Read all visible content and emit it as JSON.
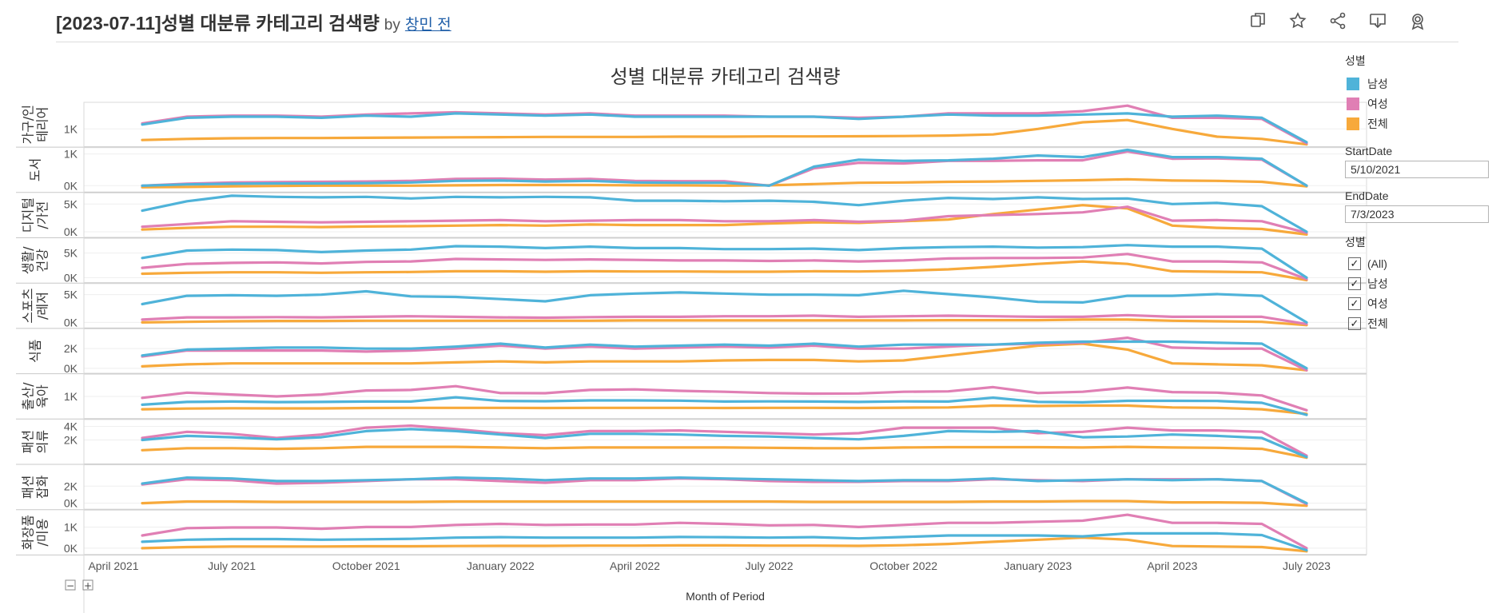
{
  "header": {
    "title": "[2023-07-11]성별 대분류 카테고리 검색량",
    "by": "by",
    "author": "창민 전",
    "toolbar": [
      {
        "name": "duplicate-icon",
        "label": "Duplicate"
      },
      {
        "name": "favorite-icon",
        "label": "Favorite"
      },
      {
        "name": "share-icon",
        "label": "Share"
      },
      {
        "name": "download-icon",
        "label": "Download"
      },
      {
        "name": "badge-icon",
        "label": "Badge"
      }
    ]
  },
  "legend": {
    "title": "성별",
    "items": [
      {
        "label": "남성",
        "color": "#4fb3d9"
      },
      {
        "label": "여성",
        "color": "#e07fb4"
      },
      {
        "label": "전체",
        "color": "#f7a93b"
      }
    ]
  },
  "parameters": {
    "start_label": "StartDate",
    "start_value": "5/10/2021",
    "end_label": "EndDate",
    "end_value": "7/3/2023"
  },
  "filter": {
    "title": "성별",
    "items": [
      {
        "label": "(All)",
        "checked": true
      },
      {
        "label": "남성",
        "checked": true
      },
      {
        "label": "여성",
        "checked": true
      },
      {
        "label": "전체",
        "checked": true
      }
    ]
  },
  "chart_data": {
    "type": "line",
    "title": "성별 대분류 카테고리 검색량",
    "xlabel": "Month of Period",
    "x_ticks": [
      "April 2021",
      "July 2021",
      "October 2021",
      "January 2022",
      "April 2022",
      "July 2022",
      "October 2022",
      "January 2023",
      "April 2023",
      "July 2023"
    ],
    "expand_controls": [
      "−",
      "+"
    ],
    "x": [
      "2021-05",
      "2021-06",
      "2021-07",
      "2021-08",
      "2021-09",
      "2021-10",
      "2021-11",
      "2021-12",
      "2022-01",
      "2022-02",
      "2022-03",
      "2022-04",
      "2022-05",
      "2022-06",
      "2022-07",
      "2022-08",
      "2022-09",
      "2022-10",
      "2022-11",
      "2022-12",
      "2023-01",
      "2023-02",
      "2023-03",
      "2023-04",
      "2023-05",
      "2023-06",
      "2023-07"
    ],
    "series_names": [
      "남성",
      "여성",
      "전체"
    ],
    "colors": [
      "#4fb3d9",
      "#e07fb4",
      "#f7a93b"
    ],
    "panels": [
      {
        "label": "가구/인테리어",
        "ticks": [
          {
            "v": 1000,
            "t": "1K"
          }
        ],
        "ylim": [
          200,
          2200
        ],
        "남성": [
          1200,
          1500,
          1550,
          1550,
          1500,
          1600,
          1550,
          1700,
          1650,
          1600,
          1650,
          1550,
          1550,
          1550,
          1550,
          1550,
          1450,
          1550,
          1650,
          1600,
          1600,
          1650,
          1700,
          1550,
          1600,
          1500,
          400
        ],
        "여성": [
          1250,
          1550,
          1600,
          1600,
          1550,
          1650,
          1700,
          1750,
          1700,
          1650,
          1700,
          1600,
          1600,
          1600,
          1550,
          1550,
          1500,
          1550,
          1700,
          1700,
          1700,
          1800,
          2050,
          1500,
          1500,
          1450,
          350
        ],
        "전체": [
          500,
          550,
          580,
          590,
          590,
          600,
          610,
          620,
          630,
          640,
          640,
          640,
          650,
          650,
          660,
          660,
          670,
          680,
          700,
          750,
          1000,
          1300,
          1400,
          1000,
          650,
          550,
          300
        ]
      },
      {
        "label": "도서",
        "ticks": [
          {
            "v": 1000,
            "t": "1K"
          },
          {
            "v": 0,
            "t": "0K"
          }
        ],
        "ylim": [
          -200,
          1200
        ],
        "남성": [
          0,
          40,
          60,
          70,
          70,
          80,
          100,
          150,
          160,
          130,
          150,
          100,
          90,
          90,
          0,
          600,
          820,
          780,
          800,
          850,
          950,
          900,
          1130,
          900,
          900,
          850,
          0
        ],
        "여성": [
          0,
          60,
          100,
          110,
          120,
          130,
          150,
          210,
          220,
          190,
          210,
          150,
          140,
          140,
          0,
          550,
          720,
          700,
          780,
          780,
          800,
          800,
          1080,
          850,
          860,
          820,
          0
        ],
        "전체": [
          -50,
          -40,
          -20,
          -10,
          0,
          0,
          0,
          10,
          20,
          20,
          20,
          10,
          10,
          0,
          10,
          50,
          90,
          100,
          120,
          130,
          150,
          170,
          200,
          160,
          150,
          120,
          -20
        ]
      },
      {
        "label": "디지털/가전",
        "ticks": [
          {
            "v": 5000,
            "t": "5K"
          },
          {
            "v": 0,
            "t": "0K"
          }
        ],
        "ylim": [
          -1000,
          7000
        ],
        "남성": [
          3800,
          5500,
          6500,
          6300,
          6200,
          6300,
          6000,
          6300,
          6200,
          6300,
          6200,
          5600,
          5600,
          5500,
          5600,
          5400,
          4800,
          5600,
          6100,
          5900,
          6200,
          5900,
          6000,
          5000,
          5200,
          4600,
          0
        ],
        "여성": [
          900,
          1400,
          1900,
          1800,
          1700,
          1800,
          1900,
          2000,
          2100,
          1900,
          2000,
          2100,
          2100,
          1900,
          1900,
          2100,
          1800,
          2000,
          2800,
          3000,
          3200,
          3500,
          4500,
          2000,
          2100,
          1900,
          -200
        ],
        "전체": [
          400,
          700,
          900,
          900,
          850,
          950,
          1000,
          1100,
          1200,
          1100,
          1300,
          1200,
          1200,
          1200,
          1500,
          1700,
          1600,
          1900,
          2200,
          3200,
          4000,
          4800,
          4200,
          1100,
          700,
          500,
          -500
        ]
      },
      {
        "label": "생활/건강",
        "ticks": [
          {
            "v": 5000,
            "t": "5K"
          },
          {
            "v": 0,
            "t": "0K"
          }
        ],
        "ylim": [
          -1000,
          8000
        ],
        "남성": [
          4000,
          5500,
          5700,
          5600,
          5200,
          5500,
          5700,
          6400,
          6300,
          6000,
          6300,
          6000,
          6000,
          5800,
          5800,
          5900,
          5600,
          6000,
          6200,
          6300,
          6100,
          6200,
          6600,
          6300,
          6300,
          5900,
          0
        ],
        "여성": [
          2000,
          2800,
          3000,
          3100,
          2900,
          3200,
          3300,
          3800,
          3700,
          3600,
          3700,
          3600,
          3500,
          3500,
          3400,
          3500,
          3300,
          3500,
          3900,
          4000,
          4000,
          4100,
          4800,
          3300,
          3300,
          3100,
          -300
        ],
        "전체": [
          800,
          1000,
          1100,
          1100,
          1000,
          1100,
          1150,
          1300,
          1300,
          1200,
          1300,
          1250,
          1250,
          1200,
          1200,
          1300,
          1250,
          1400,
          1700,
          2200,
          2800,
          3300,
          2800,
          1300,
          1200,
          1100,
          -500
        ]
      },
      {
        "label": "스포츠/레저",
        "ticks": [
          {
            "v": 5000,
            "t": "5K"
          },
          {
            "v": 0,
            "t": "0K"
          }
        ],
        "ylim": [
          -1000,
          7000
        ],
        "남성": [
          3300,
          4800,
          4900,
          4800,
          5000,
          5600,
          4700,
          4600,
          4200,
          3800,
          4900,
          5200,
          5400,
          5200,
          5000,
          5000,
          4900,
          5700,
          5100,
          4500,
          3700,
          3600,
          4800,
          4800,
          5100,
          4800,
          0
        ],
        "여성": [
          500,
          900,
          900,
          950,
          900,
          1000,
          1100,
          1000,
          900,
          850,
          950,
          1000,
          1000,
          1100,
          1100,
          1200,
          1000,
          1100,
          1200,
          1100,
          1000,
          1000,
          1300,
          1000,
          1000,
          1000,
          -300
        ],
        "전체": [
          0,
          100,
          200,
          250,
          250,
          300,
          300,
          300,
          300,
          300,
          300,
          350,
          350,
          350,
          350,
          350,
          350,
          350,
          400,
          400,
          400,
          500,
          500,
          300,
          200,
          100,
          -500
        ]
      },
      {
        "label": "식품",
        "ticks": [
          {
            "v": 2000,
            "t": "2K"
          },
          {
            "v": 0,
            "t": "0K"
          }
        ],
        "ylim": [
          -500,
          4000
        ],
        "남성": [
          1300,
          1900,
          2000,
          2100,
          2100,
          2000,
          2000,
          2200,
          2500,
          2100,
          2400,
          2200,
          2300,
          2400,
          2300,
          2500,
          2200,
          2400,
          2400,
          2400,
          2600,
          2700,
          2700,
          2700,
          2600,
          2500,
          0
        ],
        "여성": [
          1200,
          1800,
          1800,
          1800,
          1800,
          1700,
          1800,
          2000,
          2300,
          2000,
          2200,
          2000,
          2100,
          2200,
          2100,
          2300,
          2000,
          2000,
          2200,
          2400,
          2500,
          2600,
          3100,
          2100,
          2000,
          2000,
          -200
        ],
        "전체": [
          200,
          400,
          500,
          500,
          500,
          500,
          500,
          600,
          700,
          600,
          700,
          700,
          700,
          800,
          850,
          850,
          700,
          800,
          1300,
          1800,
          2300,
          2500,
          1900,
          500,
          400,
          300,
          -200
        ]
      },
      {
        "label": "출산/육아",
        "ticks": [
          {
            "v": 1000,
            "t": "1K"
          }
        ],
        "ylim": [
          -200,
          2200
        ],
        "남성": [
          550,
          700,
          720,
          690,
          700,
          720,
          720,
          950,
          750,
          740,
          780,
          780,
          770,
          720,
          730,
          720,
          700,
          730,
          720,
          930,
          700,
          680,
          760,
          760,
          750,
          650,
          0
        ],
        "여성": [
          920,
          1200,
          1100,
          1000,
          1100,
          1320,
          1350,
          1550,
          1180,
          1170,
          1350,
          1380,
          1300,
          1250,
          1180,
          1150,
          1160,
          1250,
          1270,
          1500,
          1180,
          1250,
          1480,
          1230,
          1200,
          1050,
          250
        ],
        "전체": [
          300,
          340,
          360,
          350,
          350,
          370,
          380,
          380,
          380,
          370,
          380,
          380,
          380,
          370,
          380,
          380,
          370,
          390,
          400,
          500,
          480,
          500,
          500,
          400,
          380,
          300,
          50
        ]
      },
      {
        "label": "패션의류",
        "ticks": [
          {
            "v": 4000,
            "t": "4K"
          },
          {
            "v": 2000,
            "t": "2K"
          }
        ],
        "ylim": [
          -1500,
          5000
        ],
        "남성": [
          2000,
          2600,
          2400,
          2100,
          2400,
          3300,
          3600,
          3300,
          2800,
          2300,
          2900,
          2900,
          2800,
          2600,
          2500,
          2300,
          2100,
          2600,
          3300,
          3200,
          3300,
          2400,
          2500,
          2800,
          2600,
          2300,
          -500
        ],
        "여성": [
          2300,
          3200,
          2900,
          2300,
          2800,
          3800,
          4100,
          3600,
          3000,
          2700,
          3300,
          3300,
          3400,
          3200,
          3000,
          2800,
          3000,
          3800,
          3800,
          3800,
          3000,
          3200,
          3800,
          3400,
          3400,
          3200,
          -300
        ],
        "전체": [
          500,
          800,
          800,
          700,
          800,
          1000,
          1000,
          1000,
          900,
          800,
          900,
          900,
          900,
          900,
          850,
          800,
          800,
          900,
          950,
          950,
          950,
          900,
          1000,
          900,
          850,
          700,
          -600
        ]
      },
      {
        "label": "패션잡화",
        "ticks": [
          {
            "v": 2000,
            "t": "2K"
          },
          {
            "v": 0,
            "t": "0K"
          }
        ],
        "ylim": [
          -700,
          4500
        ],
        "남성": [
          2300,
          3000,
          2900,
          2600,
          2600,
          2700,
          2800,
          3000,
          2900,
          2700,
          2900,
          2900,
          3000,
          2900,
          2800,
          2700,
          2600,
          2700,
          2700,
          2900,
          2600,
          2700,
          2800,
          2700,
          2800,
          2600,
          0
        ],
        "여성": [
          2200,
          2800,
          2700,
          2300,
          2400,
          2600,
          2800,
          2800,
          2600,
          2400,
          2700,
          2700,
          2900,
          2800,
          2600,
          2500,
          2500,
          2600,
          2600,
          2800,
          2700,
          2600,
          2800,
          2800,
          2800,
          2600,
          -100
        ],
        "전체": [
          0,
          200,
          200,
          150,
          150,
          150,
          150,
          200,
          200,
          200,
          200,
          200,
          200,
          200,
          200,
          150,
          150,
          150,
          150,
          200,
          200,
          250,
          250,
          100,
          100,
          50,
          -300
        ]
      },
      {
        "label": "화장품/미용",
        "ticks": [
          {
            "v": 1000,
            "t": "1K"
          },
          {
            "v": 0,
            "t": "0K"
          }
        ],
        "ylim": [
          -300,
          1800
        ],
        "남성": [
          300,
          400,
          430,
          430,
          400,
          420,
          440,
          500,
          520,
          500,
          500,
          500,
          530,
          520,
          500,
          520,
          460,
          530,
          600,
          600,
          600,
          560,
          700,
          700,
          700,
          620,
          -100
        ],
        "여성": [
          600,
          950,
          980,
          980,
          920,
          1000,
          1000,
          1100,
          1150,
          1100,
          1120,
          1120,
          1200,
          1150,
          1080,
          1100,
          1000,
          1100,
          1200,
          1200,
          1250,
          1300,
          1580,
          1200,
          1200,
          1150,
          0
        ],
        "전체": [
          0,
          50,
          80,
          80,
          80,
          90,
          90,
          100,
          110,
          110,
          120,
          120,
          130,
          130,
          120,
          120,
          110,
          140,
          200,
          300,
          400,
          500,
          400,
          100,
          80,
          50,
          -150
        ]
      }
    ]
  }
}
